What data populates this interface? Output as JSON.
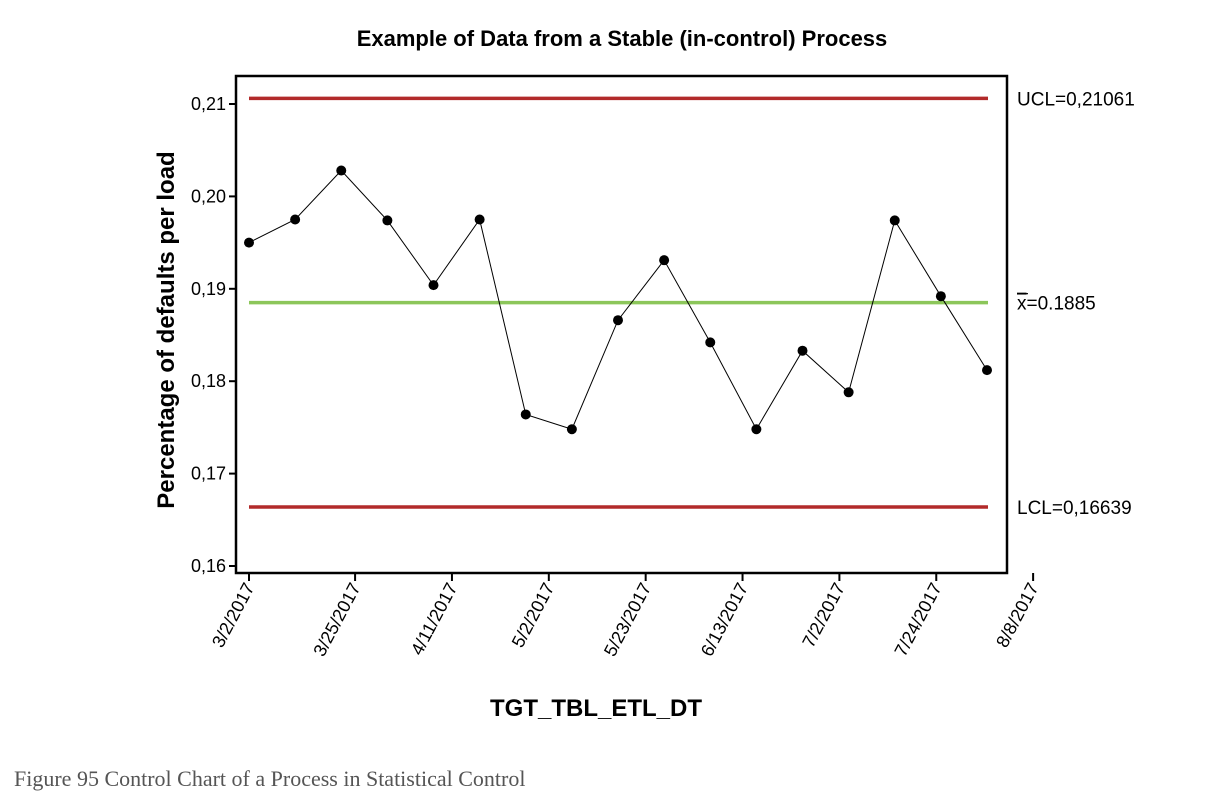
{
  "caption": "Figure 95 Control Chart of a Process in Statistical Control",
  "colors": {
    "control_limit": "#b22a2a",
    "center_line": "#8cc65a",
    "data_line": "#000000",
    "frame": "#000000"
  },
  "chart_data": {
    "type": "line",
    "title": "Example of Data from a Stable (in-control) Process",
    "xlabel": "TGT_TBL_ETL_DT",
    "ylabel": "Percentage of defaults per load",
    "ylim": [
      0.16,
      0.212
    ],
    "yticks": [
      0.16,
      0.17,
      0.18,
      0.19,
      0.2,
      0.21
    ],
    "ytick_labels": [
      "0,16",
      "0,17",
      "0,18",
      "0,19",
      "0,20",
      "0,21"
    ],
    "x_tick_labels": [
      "3/2/2017",
      "3/25/2017",
      "4/11/2017",
      "5/2/2017",
      "5/23/2017",
      "6/13/2017",
      "7/2/2017",
      "7/24/2017",
      "8/8/2017"
    ],
    "x_tick_label_points": [
      0,
      2.3,
      4.4,
      6.5,
      8.6,
      10.7,
      12.8,
      14.9,
      17
    ],
    "points": [
      0.195,
      0.1975,
      0.2028,
      0.1974,
      0.1904,
      0.1975,
      0.1764,
      0.1748,
      0.1866,
      0.1931,
      0.1842,
      0.1748,
      0.1833,
      0.1788,
      0.1974,
      0.1892,
      0.1812
    ],
    "grid": false,
    "legend": "none",
    "control_limits": [
      {
        "name": "UCL",
        "value": 0.21061,
        "label": "UCL=0,21061"
      },
      {
        "name": "center",
        "value": 0.1885,
        "label_bar": "x",
        "label_rest": "=0.1885"
      },
      {
        "name": "LCL",
        "value": 0.16639,
        "label": "LCL=0,16639"
      }
    ]
  }
}
